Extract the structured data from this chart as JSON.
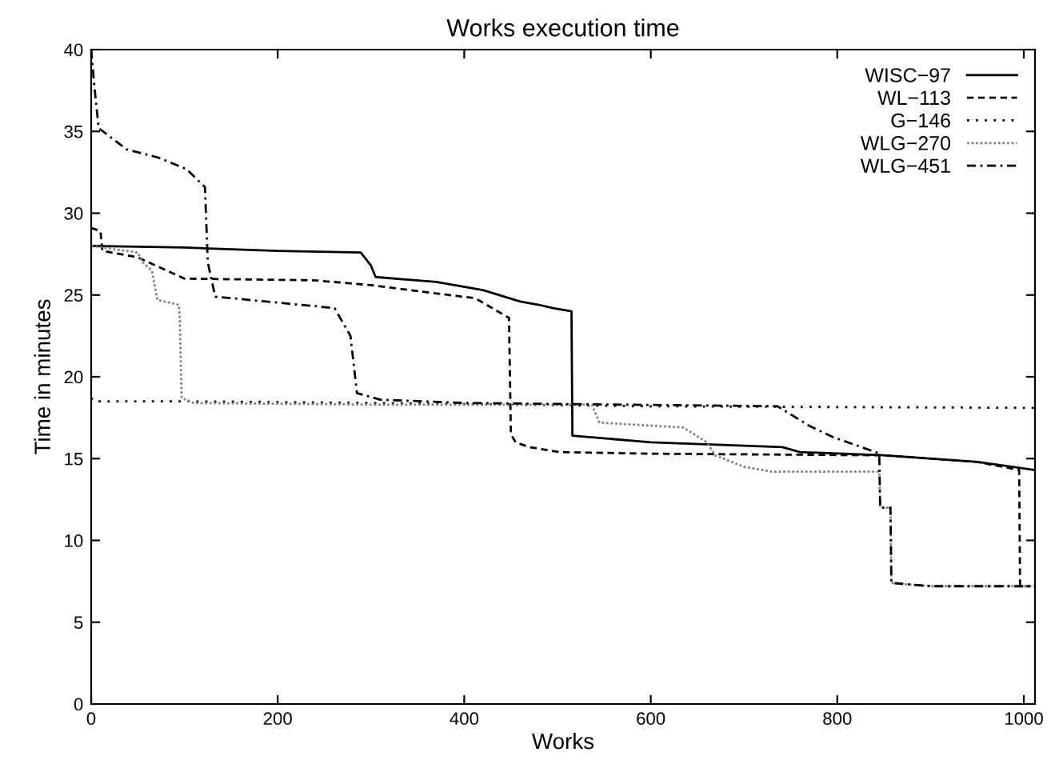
{
  "chart_data": {
    "type": "line",
    "title": "Works execution time",
    "xlabel": "Works",
    "ylabel": "Time in minutes",
    "xlim": [
      0,
      1012
    ],
    "xticks": [
      0,
      200,
      400,
      600,
      800,
      1000
    ],
    "ylim": [
      0,
      40
    ],
    "yticks": [
      0,
      5,
      10,
      15,
      20,
      25,
      30,
      35,
      40
    ],
    "grid": false,
    "legend": "top right",
    "marker": "none",
    "series": [
      {
        "name": "WISC−97",
        "color": "#000000",
        "line_style": "solid",
        "x": [
          0,
          100,
          200,
          289,
          300,
          305,
          370,
          420,
          460,
          480,
          495,
          515,
          516,
          600,
          741,
          760,
          850,
          950,
          1012
        ],
        "values": [
          28,
          27.9,
          27.7,
          27.6,
          26.8,
          26.1,
          25.8,
          25.3,
          24.6,
          24.4,
          24.2,
          24.0,
          16.4,
          16.0,
          15.7,
          15.4,
          15.2,
          14.8,
          14.3
        ]
      },
      {
        "name": "WL−113",
        "color": "#000000",
        "line_style": "dashed",
        "x": [
          0,
          10,
          12,
          50,
          100,
          239,
          300,
          412,
          448,
          450,
          455,
          470,
          502,
          600,
          850,
          950,
          995,
          996,
          1012
        ],
        "values": [
          29.1,
          28.9,
          27.7,
          27.3,
          26.0,
          25.9,
          25.6,
          24.8,
          23.6,
          16.5,
          16.0,
          15.7,
          15.4,
          15.3,
          15.2,
          14.8,
          14.3,
          7.2,
          7.2
        ]
      },
      {
        "name": "G−146",
        "color": "#000000",
        "line_style": "dotted",
        "x": [
          0,
          3,
          100,
          300,
          600,
          1012
        ],
        "values": [
          18.7,
          18.5,
          18.5,
          18.4,
          18.2,
          18.1
        ]
      },
      {
        "name": "WLG−270",
        "color": "#808080",
        "line_style": "densely dotted",
        "x": [
          0,
          50,
          55,
          65,
          71,
          94,
          95,
          97,
          110,
          300,
          537,
          545,
          635,
          660,
          669,
          700,
          730,
          845,
          846,
          857,
          858,
          900,
          1012
        ],
        "values": [
          28,
          27.6,
          27.0,
          26.5,
          24.7,
          24.4,
          23.6,
          18.7,
          18.4,
          18.3,
          18.3,
          17.2,
          16.9,
          16.0,
          15.2,
          14.5,
          14.2,
          14.2,
          12.0,
          12.0,
          7.4,
          7.2,
          7.2
        ]
      },
      {
        "name": "WLG−451",
        "color": "#000000",
        "line_style": "dashdot",
        "x": [
          0,
          3,
          8,
          38,
          72,
          102,
          122,
          125,
          133,
          261,
          278,
          285,
          310,
          400,
          736,
          770,
          796,
          841,
          845,
          846,
          857,
          858,
          900,
          1012
        ],
        "values": [
          40,
          38,
          35.2,
          33.9,
          33.4,
          32.7,
          31.6,
          27,
          24.9,
          24.2,
          22.5,
          19.0,
          18.6,
          18.4,
          18.2,
          17.0,
          16.3,
          15.4,
          15.3,
          12.0,
          12.0,
          7.4,
          7.2,
          7.2
        ]
      }
    ]
  }
}
